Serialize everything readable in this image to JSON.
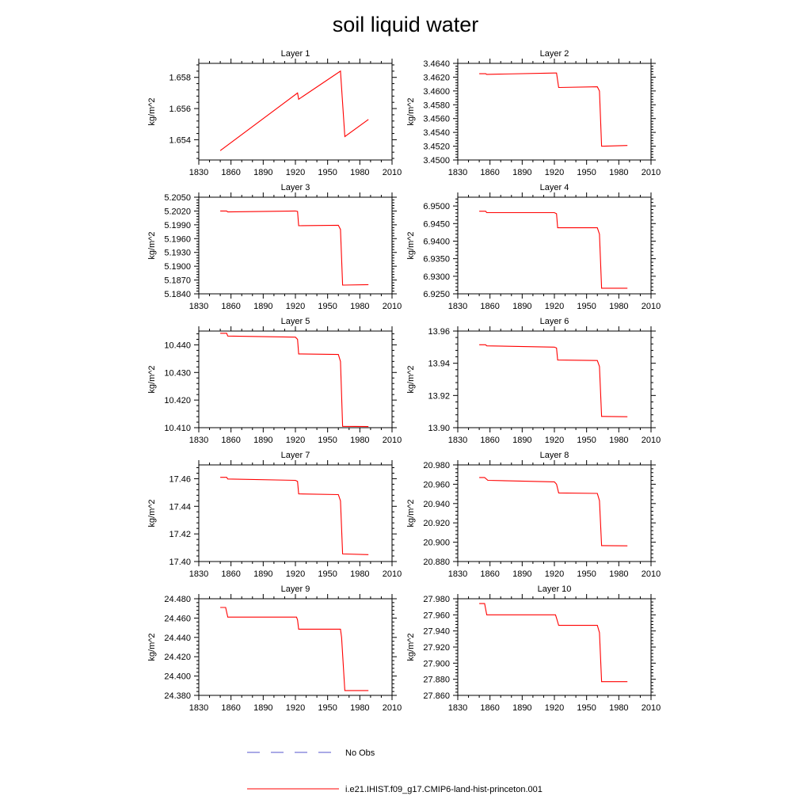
{
  "title": "soil liquid water",
  "colors": {
    "model": "#ff0000",
    "obs": "#5555cc",
    "axis": "#000000"
  },
  "legend": {
    "obs_label": "No Obs",
    "model_label": "i.e21.IHIST.f09_g17.CMIP6-land-hist-princeton.001"
  },
  "chart_data": [
    {
      "type": "line",
      "title": "Layer 1",
      "ylabel": "kg/m^2",
      "xlim": [
        1830,
        2010
      ],
      "xticks": [
        1830,
        1860,
        1890,
        1920,
        1950,
        1980,
        2010
      ],
      "ylim": [
        1.6527,
        1.6589
      ],
      "yticks": [
        1.654,
        1.656,
        1.658
      ],
      "ytick_labels": [
        "1.654",
        "1.656",
        "1.658"
      ],
      "series": [
        {
          "x": [
            1850,
            1922,
            1923,
            1962,
            1966,
            1988
          ],
          "y": [
            1.6533,
            1.657,
            1.6566,
            1.6584,
            1.6542,
            1.6553
          ]
        }
      ]
    },
    {
      "type": "line",
      "title": "Layer 2",
      "ylabel": "kg/m^2",
      "xlim": [
        1830,
        2010
      ],
      "xticks": [
        1830,
        1860,
        1890,
        1920,
        1950,
        1980,
        2010
      ],
      "ylim": [
        3.45,
        3.464
      ],
      "yticks": [
        3.45,
        3.452,
        3.454,
        3.456,
        3.458,
        3.46,
        3.462,
        3.464
      ],
      "ytick_labels": [
        "3.4500",
        "3.4520",
        "3.4540",
        "3.4560",
        "3.4580",
        "3.4600",
        "3.4620",
        "3.4640"
      ],
      "series": [
        {
          "x": [
            1850,
            1856,
            1857,
            1920,
            1922,
            1924,
            1960,
            1962,
            1964,
            1988
          ],
          "y": [
            3.4625,
            3.4625,
            3.4624,
            3.4626,
            3.4626,
            3.4605,
            3.4606,
            3.46,
            3.452,
            3.4521
          ]
        }
      ]
    },
    {
      "type": "line",
      "title": "Layer 3",
      "ylabel": "kg/m^2",
      "xlim": [
        1830,
        2010
      ],
      "xticks": [
        1830,
        1860,
        1890,
        1920,
        1950,
        1980,
        2010
      ],
      "ylim": [
        5.184,
        5.205
      ],
      "yticks": [
        5.184,
        5.187,
        5.19,
        5.193,
        5.196,
        5.199,
        5.202,
        5.205
      ],
      "ytick_labels": [
        "5.1840",
        "5.1870",
        "5.1900",
        "5.1930",
        "5.1960",
        "5.1990",
        "5.2020",
        "5.2050"
      ],
      "series": [
        {
          "x": [
            1850,
            1856,
            1857,
            1920,
            1922,
            1923,
            1960,
            1962,
            1964,
            1988
          ],
          "y": [
            5.202,
            5.202,
            5.2018,
            5.202,
            5.2019,
            5.1988,
            5.1989,
            5.198,
            5.1859,
            5.186
          ]
        }
      ]
    },
    {
      "type": "line",
      "title": "Layer 4",
      "ylabel": "kg/m^2",
      "xlim": [
        1830,
        2010
      ],
      "xticks": [
        1830,
        1860,
        1890,
        1920,
        1950,
        1980,
        2010
      ],
      "ylim": [
        6.925,
        6.9525
      ],
      "yticks": [
        6.925,
        6.93,
        6.935,
        6.94,
        6.945,
        6.95
      ],
      "ytick_labels": [
        "6.9250",
        "6.9300",
        "6.9350",
        "6.9400",
        "6.9450",
        "6.9500"
      ],
      "series": [
        {
          "x": [
            1850,
            1856,
            1857,
            1920,
            1922,
            1923,
            1960,
            1962,
            1964,
            1988
          ],
          "y": [
            6.9485,
            6.9485,
            6.9481,
            6.9481,
            6.9478,
            6.9438,
            6.9438,
            6.942,
            6.9266,
            6.9266
          ]
        }
      ]
    },
    {
      "type": "line",
      "title": "Layer 5",
      "ylabel": "kg/m^2",
      "xlim": [
        1830,
        2010
      ],
      "xticks": [
        1830,
        1860,
        1890,
        1920,
        1950,
        1980,
        2010
      ],
      "ylim": [
        10.41,
        10.445
      ],
      "yticks": [
        10.41,
        10.42,
        10.43,
        10.44
      ],
      "ytick_labels": [
        "10.410",
        "10.420",
        "10.430",
        "10.440"
      ],
      "series": [
        {
          "x": [
            1850,
            1856,
            1857,
            1920,
            1922,
            1923,
            1960,
            1962,
            1964,
            1988
          ],
          "y": [
            10.4442,
            10.4442,
            10.4432,
            10.4428,
            10.442,
            10.4367,
            10.4365,
            10.434,
            10.4105,
            10.4104
          ]
        }
      ]
    },
    {
      "type": "line",
      "title": "Layer 6",
      "ylabel": "kg/m^2",
      "xlim": [
        1830,
        2010
      ],
      "xticks": [
        1830,
        1860,
        1890,
        1920,
        1950,
        1980,
        2010
      ],
      "ylim": [
        13.9,
        13.96
      ],
      "yticks": [
        13.9,
        13.92,
        13.94,
        13.96
      ],
      "ytick_labels": [
        "13.90",
        "13.92",
        "13.94",
        "13.96"
      ],
      "series": [
        {
          "x": [
            1850,
            1856,
            1857,
            1920,
            1922,
            1923,
            1960,
            1962,
            1964,
            1988
          ],
          "y": [
            13.9515,
            13.9515,
            13.9508,
            13.95,
            13.9495,
            13.942,
            13.9417,
            13.938,
            13.907,
            13.9068
          ]
        }
      ]
    },
    {
      "type": "line",
      "title": "Layer 7",
      "ylabel": "kg/m^2",
      "xlim": [
        1830,
        2010
      ],
      "xticks": [
        1830,
        1860,
        1890,
        1920,
        1950,
        1980,
        2010
      ],
      "ylim": [
        17.4,
        17.47
      ],
      "yticks": [
        17.4,
        17.42,
        17.44,
        17.46
      ],
      "ytick_labels": [
        "17.40",
        "17.42",
        "17.44",
        "17.46"
      ],
      "series": [
        {
          "x": [
            1850,
            1856,
            1857,
            1920,
            1922,
            1923,
            1960,
            1962,
            1964,
            1988
          ],
          "y": [
            17.461,
            17.461,
            17.4598,
            17.4588,
            17.458,
            17.449,
            17.4485,
            17.444,
            17.4055,
            17.405
          ]
        }
      ]
    },
    {
      "type": "line",
      "title": "Layer 8",
      "ylabel": "kg/m^2",
      "xlim": [
        1830,
        2010
      ],
      "xticks": [
        1830,
        1860,
        1890,
        1920,
        1950,
        1980,
        2010
      ],
      "ylim": [
        20.88,
        20.98
      ],
      "yticks": [
        20.88,
        20.9,
        20.92,
        20.94,
        20.96,
        20.98
      ],
      "ytick_labels": [
        "20.880",
        "20.900",
        "20.920",
        "20.940",
        "20.960",
        "20.980"
      ],
      "series": [
        {
          "x": [
            1850,
            1855,
            1858,
            1920,
            1922,
            1924,
            1960,
            1962,
            1964,
            1988
          ],
          "y": [
            20.967,
            20.967,
            20.964,
            20.9625,
            20.96,
            20.951,
            20.9505,
            20.943,
            20.8965,
            20.8962
          ]
        }
      ]
    },
    {
      "type": "line",
      "title": "Layer 9",
      "ylabel": "kg/m^2",
      "xlim": [
        1830,
        2010
      ],
      "xticks": [
        1830,
        1860,
        1890,
        1920,
        1950,
        1980,
        2010
      ],
      "ylim": [
        24.38,
        24.48
      ],
      "yticks": [
        24.38,
        24.4,
        24.42,
        24.44,
        24.46,
        24.48
      ],
      "ytick_labels": [
        "24.380",
        "24.400",
        "24.420",
        "24.440",
        "24.460",
        "24.480"
      ],
      "series": [
        {
          "x": [
            1850,
            1855,
            1857,
            1921,
            1922,
            1923,
            1962,
            1963,
            1966,
            1988
          ],
          "y": [
            24.471,
            24.471,
            24.461,
            24.461,
            24.458,
            24.4485,
            24.4485,
            24.44,
            24.385,
            24.385
          ]
        }
      ]
    },
    {
      "type": "line",
      "title": "Layer 10",
      "ylabel": "kg/m^2",
      "xlim": [
        1830,
        2010
      ],
      "xticks": [
        1830,
        1860,
        1890,
        1920,
        1950,
        1980,
        2010
      ],
      "ylim": [
        27.86,
        27.98
      ],
      "yticks": [
        27.86,
        27.88,
        27.9,
        27.92,
        27.94,
        27.96,
        27.98
      ],
      "ytick_labels": [
        "27.860",
        "27.880",
        "27.900",
        "27.920",
        "27.940",
        "27.960",
        "27.980"
      ],
      "series": [
        {
          "x": [
            1850,
            1855,
            1857,
            1921,
            1922,
            1924,
            1960,
            1962,
            1964,
            1988
          ],
          "y": [
            27.974,
            27.974,
            27.96,
            27.96,
            27.956,
            27.947,
            27.947,
            27.938,
            27.877,
            27.877
          ]
        }
      ]
    }
  ]
}
